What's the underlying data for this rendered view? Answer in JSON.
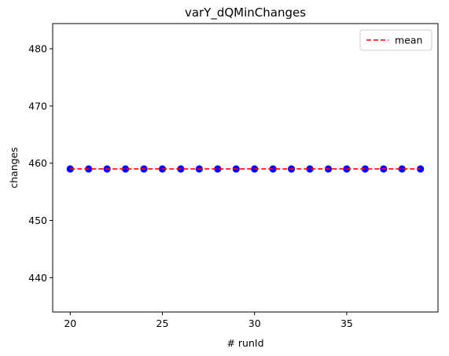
{
  "chart_data": {
    "type": "scatter",
    "title": "varY_dQMinChanges",
    "xlabel": "# runId",
    "ylabel": "changes",
    "xlim": [
      19.05,
      39.95
    ],
    "ylim": [
      434,
      484.4
    ],
    "x_ticks": [
      20,
      25,
      30,
      35
    ],
    "y_ticks": [
      440,
      450,
      460,
      470,
      480
    ],
    "grid": false,
    "legend": {
      "placement": "top-right",
      "entries": [
        {
          "label": "mean",
          "style": "dashed-line",
          "color": "#ff0000"
        }
      ]
    },
    "series": [
      {
        "marker": "circle",
        "color": "#0000ff",
        "x": [
          20,
          21,
          22,
          23,
          24,
          25,
          26,
          27,
          28,
          29,
          30,
          31,
          32,
          33,
          34,
          35,
          36,
          37,
          38,
          39
        ],
        "y": [
          459,
          459,
          459,
          459,
          459,
          459,
          459,
          459,
          459,
          459,
          459,
          459,
          459,
          459,
          459,
          459,
          459,
          459,
          459,
          459
        ]
      }
    ],
    "mean_line": {
      "name": "mean",
      "value": 459,
      "x_range": [
        20,
        39
      ],
      "color": "#ff0000",
      "style": "dashed"
    }
  }
}
